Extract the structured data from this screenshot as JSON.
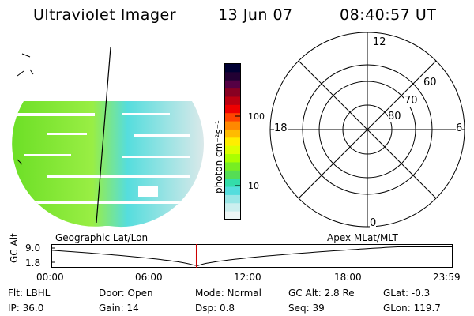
{
  "header": {
    "title": "Ultraviolet Imager",
    "date": "13 Jun 07",
    "time": "08:40:57 UT"
  },
  "colorbar": {
    "unit_label": "photon cm⁻²s⁻¹",
    "ticks": [
      "100",
      "10"
    ],
    "colors": [
      "#000033",
      "#220033",
      "#550044",
      "#880022",
      "#bb0011",
      "#ee0000",
      "#ff4400",
      "#ff8800",
      "#ffbb00",
      "#ffee00",
      "#ddff00",
      "#aaff00",
      "#77ee22",
      "#55dd55",
      "#33ddaa",
      "#55dddd",
      "#99e6e6",
      "#ccefef",
      "#eef6f6"
    ]
  },
  "left_panel": {
    "caption": "Geographic Lat/Lon",
    "colors": {
      "green": "#66dd22",
      "light_green": "#99ee44",
      "cyan": "#55dddd",
      "pale": "#dde9ea"
    }
  },
  "polar_panel": {
    "caption": "Apex MLat/MLT",
    "mlt_labels": {
      "top": "12",
      "left": "18",
      "right": "6",
      "bottom": "0"
    },
    "lat_labels": [
      "60",
      "70",
      "80"
    ]
  },
  "timeline": {
    "axis_label": "GC Alt",
    "y_ticks": [
      "9.0",
      "1.8"
    ],
    "x_ticks": [
      "00:00",
      "06:00",
      "12:00",
      "18:00",
      "23:59"
    ],
    "marker_time": "08:40",
    "marker_color": "#cc0000"
  },
  "info": {
    "flt": "Flt: LBHL",
    "door": "Door: Open",
    "mode": "Mode: Normal",
    "gc_alt": "GC Alt: 2.8 Re",
    "glat": "GLat:   -0.3",
    "ip": "IP: 36.0",
    "gain": "Gain: 14",
    "dsp": "Dsp:     0.8",
    "seq": "Seq: 39",
    "glon": "GLon: 119.7"
  }
}
